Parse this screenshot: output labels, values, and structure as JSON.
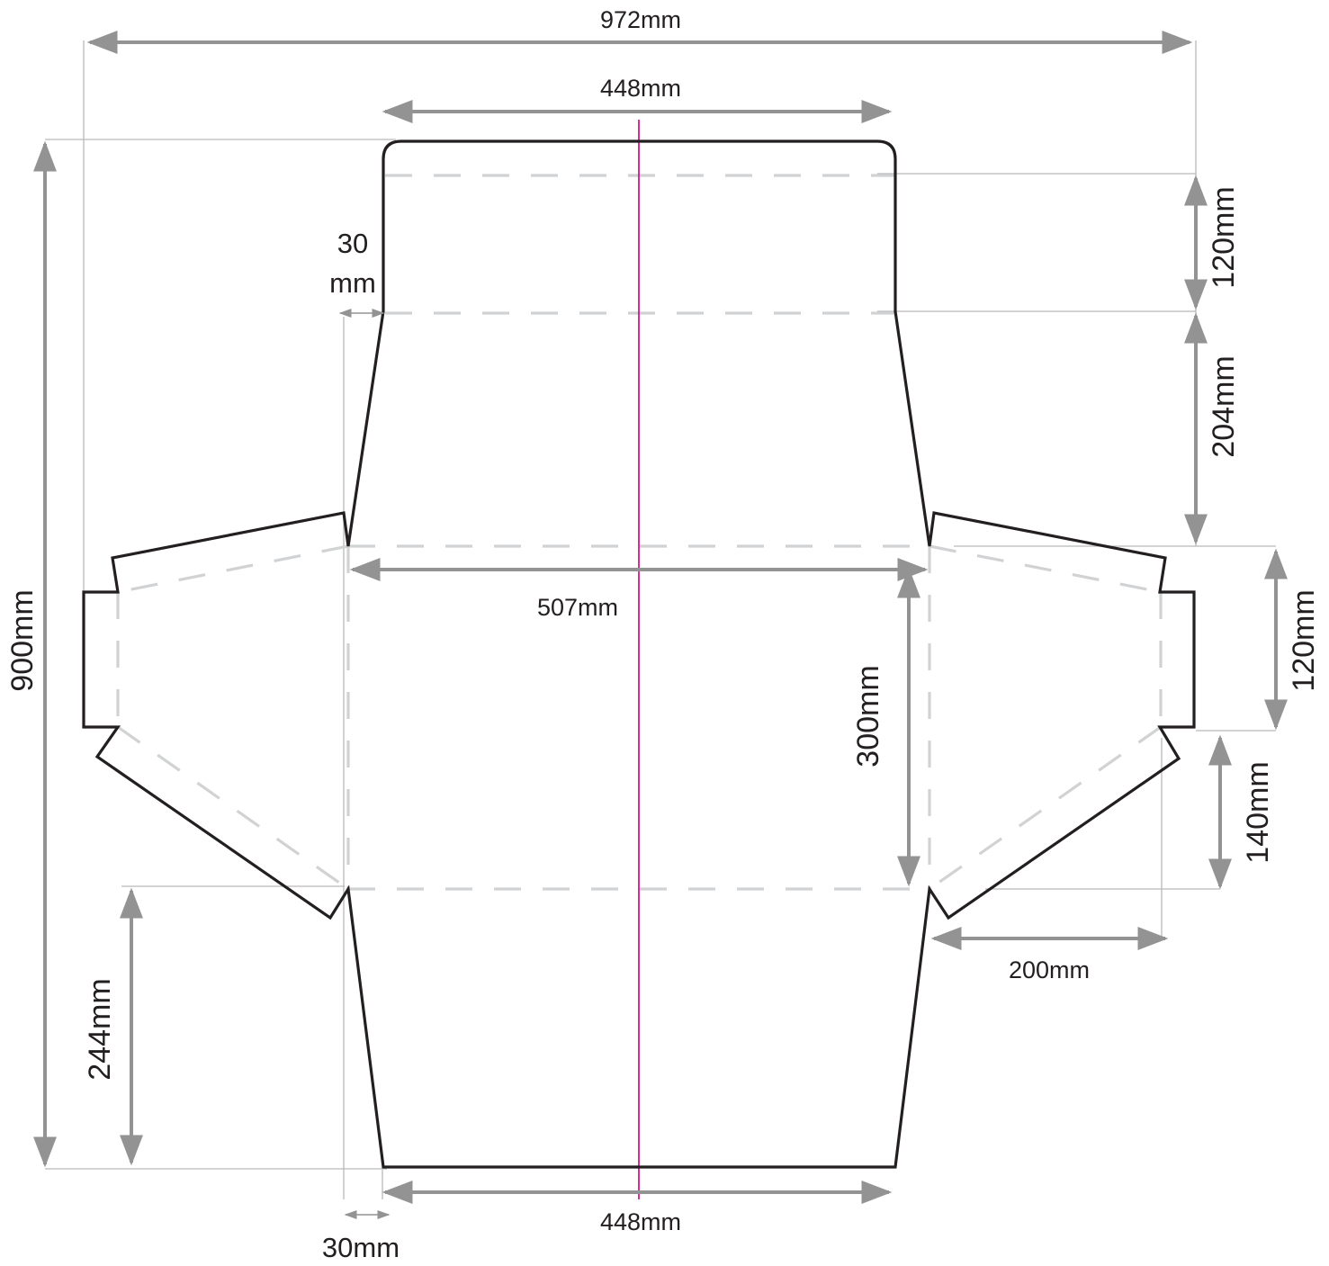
{
  "unit": "mm",
  "colors": {
    "cut_line": "#231f20",
    "fold_line": "#d1d2d4",
    "dimension": "#939393",
    "extension": "#b9b9b9",
    "center_line": "#d4148c"
  },
  "dimensions": {
    "overall_width": "972mm",
    "overall_height": "900mm",
    "top_width": "448mm",
    "bottom_width": "448mm",
    "middle_width": "507mm",
    "top_flap_height": "120mm",
    "upper_panel_height": "204mm",
    "right_tab_height": "120mm",
    "right_flap_lower_height": "140mm",
    "middle_height": "300mm",
    "side_flap_width": "200mm",
    "bottom_panel_height": "244mm",
    "top_offset_line1": "30",
    "top_offset_line2": "mm",
    "bottom_offset": "30mm"
  }
}
